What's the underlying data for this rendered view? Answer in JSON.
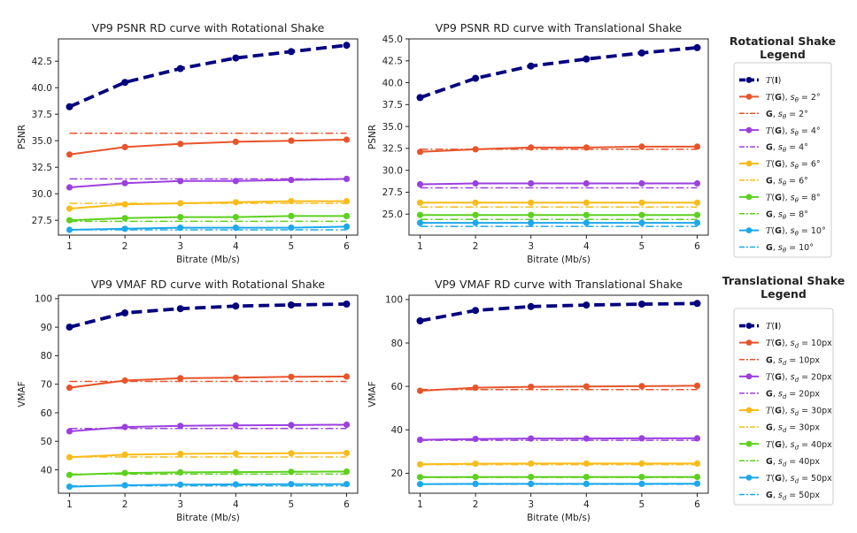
{
  "chart_data": [
    {
      "type": "line",
      "title": "VP9 PSNR RD curve with Rotational Shake",
      "xlabel": "Bitrate (Mb/s)",
      "ylabel": "PSNR",
      "x": [
        1,
        2,
        3,
        4,
        5,
        6
      ],
      "xlim": [
        0.8,
        6.2
      ],
      "ylim": [
        26.1,
        44.6
      ],
      "xticks": [
        "1",
        "2",
        "3",
        "4",
        "5",
        "6"
      ],
      "yticks": [
        27.5,
        30.0,
        32.5,
        35.0,
        37.5,
        40.0,
        42.5
      ],
      "ytick_labels": [
        "27.5",
        "30.0",
        "32.5",
        "35.0",
        "37.5",
        "40.0",
        "42.5"
      ],
      "series": [
        {
          "color": "#000080",
          "style": "bold-dashed",
          "marker": true,
          "values": [
            38.2,
            40.5,
            41.8,
            42.8,
            43.4,
            44.0
          ]
        },
        {
          "color": "#e8542a",
          "style": "solid",
          "marker": true,
          "values": [
            33.7,
            34.4,
            34.7,
            34.9,
            35.0,
            35.1
          ]
        },
        {
          "color": "#e8542a",
          "style": "dashdot",
          "marker": false,
          "values": [
            35.7,
            35.7,
            35.7,
            35.7,
            35.7,
            35.7
          ]
        },
        {
          "color": "#9b40e0",
          "style": "solid",
          "marker": true,
          "values": [
            30.6,
            31.0,
            31.2,
            31.2,
            31.3,
            31.4
          ]
        },
        {
          "color": "#9b40e0",
          "style": "dashdot",
          "marker": false,
          "values": [
            31.4,
            31.4,
            31.4,
            31.4,
            31.4,
            31.4
          ]
        },
        {
          "color": "#f9bb18",
          "style": "solid",
          "marker": true,
          "values": [
            28.6,
            29.0,
            29.1,
            29.2,
            29.3,
            29.3
          ]
        },
        {
          "color": "#f9bb18",
          "style": "dashdot",
          "marker": false,
          "values": [
            29.1,
            29.1,
            29.1,
            29.1,
            29.1,
            29.1
          ]
        },
        {
          "color": "#5cd11e",
          "style": "solid",
          "marker": true,
          "values": [
            27.5,
            27.7,
            27.8,
            27.8,
            27.9,
            27.9
          ]
        },
        {
          "color": "#5cd11e",
          "style": "dashdot",
          "marker": false,
          "values": [
            27.4,
            27.4,
            27.4,
            27.4,
            27.4,
            27.4
          ]
        },
        {
          "color": "#1ca8ec",
          "style": "solid",
          "marker": true,
          "values": [
            26.6,
            26.7,
            26.8,
            26.8,
            26.8,
            26.9
          ]
        },
        {
          "color": "#1ca8ec",
          "style": "dashdot",
          "marker": false,
          "values": [
            26.6,
            26.6,
            26.6,
            26.6,
            26.6,
            26.6
          ]
        }
      ]
    },
    {
      "type": "line",
      "title": "VP9 PSNR RD curve with Translational Shake",
      "xlabel": "Bitrate (Mb/s)",
      "ylabel": "PSNR",
      "x": [
        1,
        2,
        3,
        4,
        5,
        6
      ],
      "xlim": [
        0.8,
        6.2
      ],
      "ylim": [
        22.6,
        45.0
      ],
      "xticks": [
        "1",
        "2",
        "3",
        "4",
        "5",
        "6"
      ],
      "yticks": [
        25.0,
        27.5,
        30.0,
        32.5,
        35.0,
        37.5,
        40.0,
        42.5,
        45.0
      ],
      "ytick_labels": [
        "25.0",
        "27.5",
        "30.0",
        "32.5",
        "35.0",
        "37.5",
        "40.0",
        "42.5",
        "45.0"
      ],
      "series": [
        {
          "color": "#000080",
          "style": "bold-dashed",
          "marker": true,
          "values": [
            38.3,
            40.5,
            41.9,
            42.7,
            43.4,
            44.0
          ]
        },
        {
          "color": "#e8542a",
          "style": "solid",
          "marker": true,
          "values": [
            32.1,
            32.4,
            32.6,
            32.6,
            32.7,
            32.7
          ]
        },
        {
          "color": "#e8542a",
          "style": "dashdot",
          "marker": false,
          "values": [
            32.4,
            32.4,
            32.4,
            32.4,
            32.4,
            32.4
          ]
        },
        {
          "color": "#9b40e0",
          "style": "solid",
          "marker": true,
          "values": [
            28.4,
            28.5,
            28.5,
            28.5,
            28.5,
            28.5
          ]
        },
        {
          "color": "#9b40e0",
          "style": "dashdot",
          "marker": false,
          "values": [
            28.0,
            28.0,
            28.0,
            28.0,
            28.0,
            28.0
          ]
        },
        {
          "color": "#f9bb18",
          "style": "solid",
          "marker": true,
          "values": [
            26.3,
            26.3,
            26.3,
            26.3,
            26.3,
            26.3
          ]
        },
        {
          "color": "#f9bb18",
          "style": "dashdot",
          "marker": false,
          "values": [
            25.8,
            25.8,
            25.8,
            25.8,
            25.8,
            25.8
          ]
        },
        {
          "color": "#5cd11e",
          "style": "solid",
          "marker": true,
          "values": [
            24.9,
            24.9,
            24.9,
            24.9,
            24.9,
            24.9
          ]
        },
        {
          "color": "#5cd11e",
          "style": "dashdot",
          "marker": false,
          "values": [
            24.4,
            24.4,
            24.4,
            24.4,
            24.4,
            24.4
          ]
        },
        {
          "color": "#1ca8ec",
          "style": "solid",
          "marker": true,
          "values": [
            24.0,
            24.0,
            24.0,
            24.0,
            24.0,
            24.0
          ]
        },
        {
          "color": "#1ca8ec",
          "style": "dashdot",
          "marker": false,
          "values": [
            23.6,
            23.6,
            23.6,
            23.6,
            23.6,
            23.6
          ]
        }
      ]
    },
    {
      "type": "line",
      "title": "VP9 VMAF RD curve with Rotational Shake",
      "xlabel": "Bitrate (Mb/s)",
      "ylabel": "VMAF",
      "x": [
        1,
        2,
        3,
        4,
        5,
        6
      ],
      "xlim": [
        0.8,
        6.2
      ],
      "ylim": [
        31.8,
        101.2
      ],
      "xticks": [
        "1",
        "2",
        "3",
        "4",
        "5",
        "6"
      ],
      "yticks": [
        40,
        50,
        60,
        70,
        80,
        90,
        100
      ],
      "ytick_labels": [
        "40",
        "50",
        "60",
        "70",
        "80",
        "90",
        "100"
      ],
      "series": [
        {
          "color": "#000080",
          "style": "bold-dashed",
          "marker": true,
          "values": [
            90.0,
            95.0,
            96.5,
            97.4,
            97.8,
            98.1
          ]
        },
        {
          "color": "#e8542a",
          "style": "solid",
          "marker": true,
          "values": [
            68.8,
            71.3,
            72.1,
            72.3,
            72.6,
            72.7
          ]
        },
        {
          "color": "#e8542a",
          "style": "dashdot",
          "marker": false,
          "values": [
            71.0,
            71.0,
            71.0,
            71.0,
            71.0,
            71.0
          ]
        },
        {
          "color": "#9b40e0",
          "style": "solid",
          "marker": true,
          "values": [
            53.5,
            55.0,
            55.4,
            55.6,
            55.7,
            55.8
          ]
        },
        {
          "color": "#9b40e0",
          "style": "dashdot",
          "marker": false,
          "values": [
            54.5,
            54.5,
            54.5,
            54.5,
            54.5,
            54.5
          ]
        },
        {
          "color": "#f9bb18",
          "style": "solid",
          "marker": true,
          "values": [
            44.4,
            45.3,
            45.6,
            45.7,
            45.8,
            45.9
          ]
        },
        {
          "color": "#f9bb18",
          "style": "dashdot",
          "marker": false,
          "values": [
            44.5,
            44.5,
            44.5,
            44.5,
            44.5,
            44.5
          ]
        },
        {
          "color": "#5cd11e",
          "style": "solid",
          "marker": true,
          "values": [
            38.2,
            38.9,
            39.1,
            39.2,
            39.3,
            39.4
          ]
        },
        {
          "color": "#5cd11e",
          "style": "dashdot",
          "marker": false,
          "values": [
            38.5,
            38.5,
            38.5,
            38.5,
            38.5,
            38.5
          ]
        },
        {
          "color": "#1ca8ec",
          "style": "solid",
          "marker": true,
          "values": [
            34.1,
            34.6,
            34.8,
            34.9,
            35.0,
            35.0
          ]
        },
        {
          "color": "#1ca8ec",
          "style": "dashdot",
          "marker": false,
          "values": [
            34.4,
            34.4,
            34.4,
            34.4,
            34.4,
            34.4
          ]
        }
      ]
    },
    {
      "type": "line",
      "title": "VP9 VMAF RD curve with Translational Shake",
      "xlabel": "Bitrate (Mb/s)",
      "ylabel": "VMAF",
      "x": [
        1,
        2,
        3,
        4,
        5,
        6
      ],
      "xlim": [
        0.8,
        6.2
      ],
      "ylim": [
        10.8,
        102.0
      ],
      "xticks": [
        "1",
        "2",
        "3",
        "4",
        "5",
        "6"
      ],
      "yticks": [
        20,
        40,
        60,
        80,
        100
      ],
      "ytick_labels": [
        "20",
        "40",
        "60",
        "80",
        "100"
      ],
      "series": [
        {
          "color": "#000080",
          "style": "bold-dashed",
          "marker": true,
          "values": [
            90.2,
            95.0,
            96.8,
            97.5,
            97.9,
            98.2
          ]
        },
        {
          "color": "#e8542a",
          "style": "solid",
          "marker": true,
          "values": [
            58.0,
            59.4,
            59.8,
            60.0,
            60.1,
            60.3
          ]
        },
        {
          "color": "#e8542a",
          "style": "dashdot",
          "marker": false,
          "values": [
            58.5,
            58.5,
            58.5,
            58.5,
            58.5,
            58.5
          ]
        },
        {
          "color": "#9b40e0",
          "style": "solid",
          "marker": true,
          "values": [
            35.4,
            35.8,
            36.0,
            36.0,
            36.1,
            36.1
          ]
        },
        {
          "color": "#9b40e0",
          "style": "dashdot",
          "marker": false,
          "values": [
            35.2,
            35.2,
            35.2,
            35.2,
            35.2,
            35.2
          ]
        },
        {
          "color": "#f9bb18",
          "style": "solid",
          "marker": true,
          "values": [
            24.1,
            24.4,
            24.5,
            24.5,
            24.5,
            24.5
          ]
        },
        {
          "color": "#f9bb18",
          "style": "dashdot",
          "marker": false,
          "values": [
            24.0,
            24.0,
            24.0,
            24.0,
            24.0,
            24.0
          ]
        },
        {
          "color": "#5cd11e",
          "style": "solid",
          "marker": true,
          "values": [
            18.2,
            18.3,
            18.3,
            18.3,
            18.3,
            18.3
          ]
        },
        {
          "color": "#5cd11e",
          "style": "dashdot",
          "marker": false,
          "values": [
            18.1,
            18.1,
            18.1,
            18.1,
            18.1,
            18.1
          ]
        },
        {
          "color": "#1ca8ec",
          "style": "solid",
          "marker": true,
          "values": [
            15.0,
            15.1,
            15.1,
            15.1,
            15.1,
            15.2
          ]
        },
        {
          "color": "#1ca8ec",
          "style": "dashdot",
          "marker": false,
          "values": [
            14.9,
            14.9,
            14.9,
            14.9,
            14.9,
            14.9
          ]
        }
      ]
    }
  ],
  "legends": [
    {
      "title_line1": "Rotational Shake",
      "title_line2": "Legend",
      "entries": [
        {
          "symbol": "T",
          "arg": "I",
          "param": ""
        },
        {
          "symbol": "T",
          "arg": "G",
          "param": "2°"
        },
        {
          "symbol": "",
          "arg": "G",
          "param": "2°"
        },
        {
          "symbol": "T",
          "arg": "G",
          "param": "4°"
        },
        {
          "symbol": "",
          "arg": "G",
          "param": "4°"
        },
        {
          "symbol": "T",
          "arg": "G",
          "param": "6°"
        },
        {
          "symbol": "",
          "arg": "G",
          "param": "6°"
        },
        {
          "symbol": "T",
          "arg": "G",
          "param": "8°"
        },
        {
          "symbol": "",
          "arg": "G",
          "param": "8°"
        },
        {
          "symbol": "T",
          "arg": "G",
          "param": "10°"
        },
        {
          "symbol": "",
          "arg": "G",
          "param": "10°"
        }
      ],
      "param_symbol": "s",
      "param_sub": "θ"
    },
    {
      "title_line1": "Translational Shake",
      "title_line2": "Legend",
      "entries": [
        {
          "symbol": "T",
          "arg": "I",
          "param": ""
        },
        {
          "symbol": "T",
          "arg": "G",
          "param": "10px"
        },
        {
          "symbol": "",
          "arg": "G",
          "param": "10px"
        },
        {
          "symbol": "T",
          "arg": "G",
          "param": "20px"
        },
        {
          "symbol": "",
          "arg": "G",
          "param": "20px"
        },
        {
          "symbol": "T",
          "arg": "G",
          "param": "30px"
        },
        {
          "symbol": "",
          "arg": "G",
          "param": "30px"
        },
        {
          "symbol": "T",
          "arg": "G",
          "param": "40px"
        },
        {
          "symbol": "",
          "arg": "G",
          "param": "40px"
        },
        {
          "symbol": "T",
          "arg": "G",
          "param": "50px"
        },
        {
          "symbol": "",
          "arg": "G",
          "param": "50px"
        }
      ],
      "param_symbol": "s",
      "param_sub": "d"
    }
  ]
}
